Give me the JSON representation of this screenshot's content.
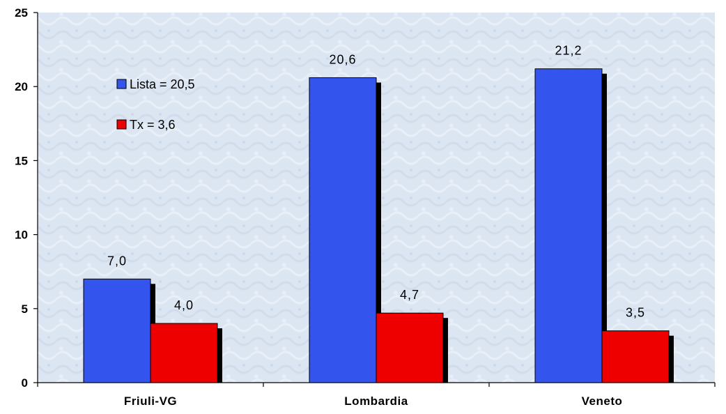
{
  "chart_data": {
    "type": "bar",
    "categories": [
      "Friuli-VG",
      "Lombardia",
      "Veneto"
    ],
    "series": [
      {
        "name": "Lista = 20,5",
        "values": [
          7.0,
          20.6,
          21.2
        ],
        "labels": [
          "7,0",
          "20,6",
          "21,2"
        ],
        "color": "#3355ee"
      },
      {
        "name": "Tx = 3,6",
        "values": [
          4.0,
          4.7,
          3.5
        ],
        "labels": [
          "4,0",
          "4,7",
          "3,5"
        ],
        "color": "#ee0000"
      }
    ],
    "ylim": [
      0,
      25
    ],
    "yticks": [
      0,
      5,
      10,
      15,
      20,
      25
    ],
    "xlabel": "",
    "ylabel": "",
    "title": "",
    "grid": false,
    "legend_position": "top-left",
    "plot_background": "#dfe8f3"
  }
}
